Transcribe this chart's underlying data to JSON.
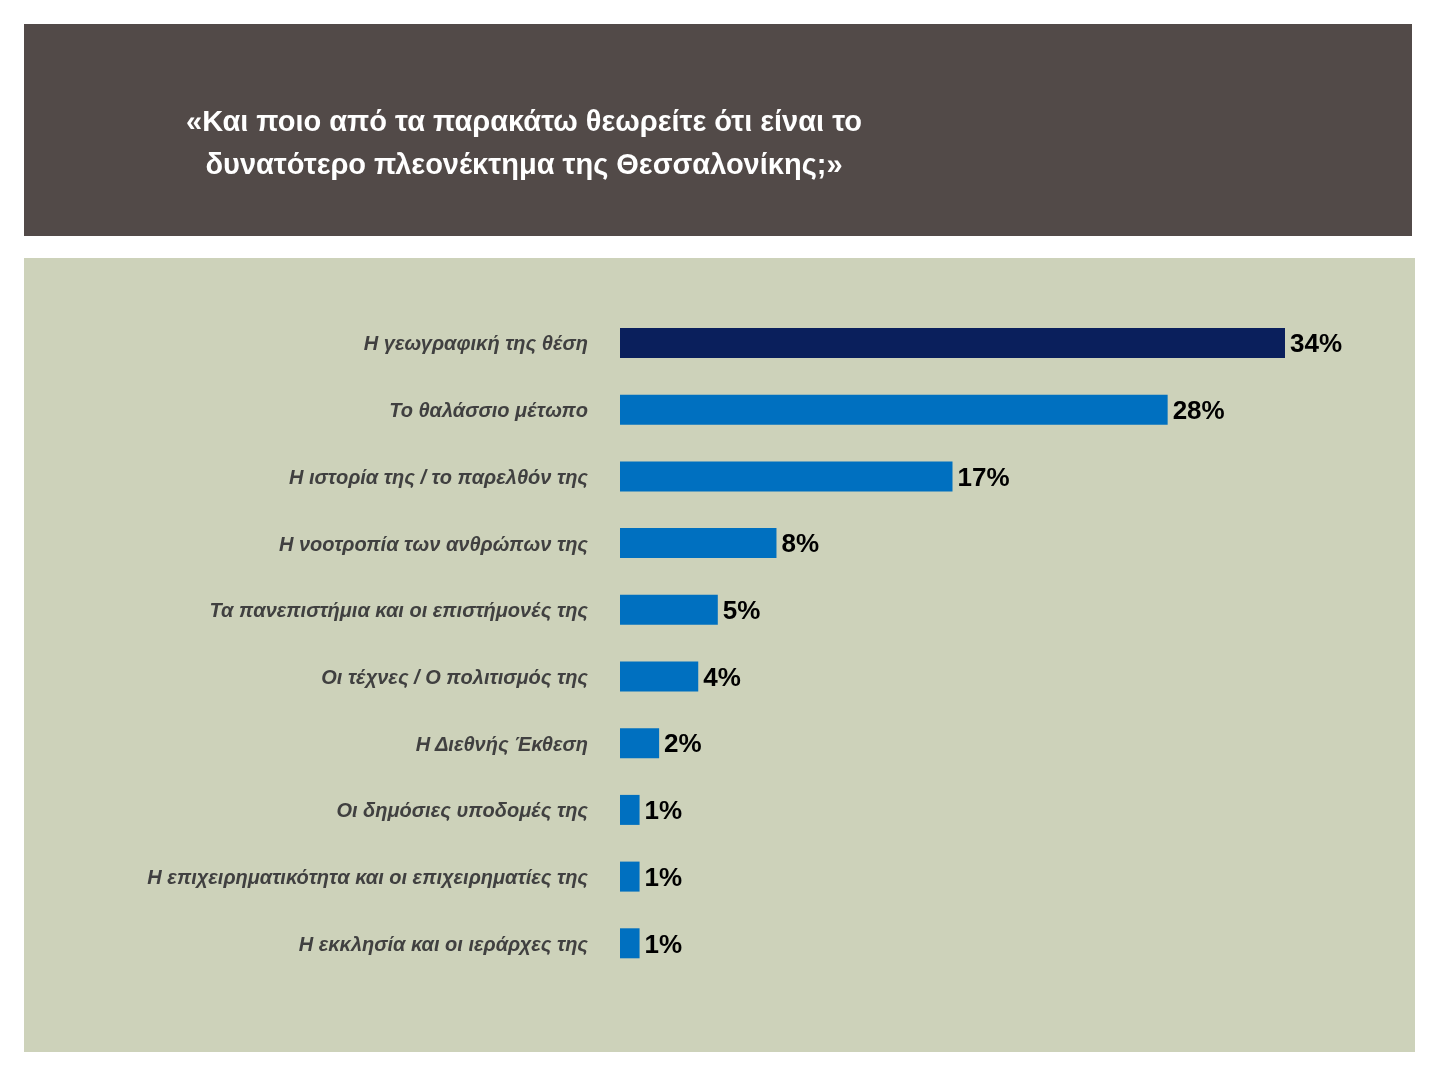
{
  "chart_data": {
    "type": "bar",
    "orientation": "horizontal",
    "title": "«Και ποιο από τα παρακάτω θεωρείτε ότι είναι το δυνατότερο πλεονέκτημα της Θεσσαλονίκης;»",
    "categories": [
      "Η γεωγραφική της θέση",
      "Το θαλάσσιο μέτωπο",
      "Η ιστορία της / το παρελθόν της",
      "Η νοοτροπία των ανθρώπων της",
      "Τα πανεπιστήμια και οι επιστήμονές της",
      "Οι τέχνες / Ο πολιτισμός της",
      "Η Διεθνής Έκθεση",
      "Οι δημόσιες υποδομές της",
      "Η επιχειρηματικότητα και οι επιχειρηματίες της",
      "Η εκκλησία και οι ιεράρχες της"
    ],
    "values": [
      34,
      28,
      17,
      8,
      5,
      4,
      2,
      1,
      1,
      1
    ],
    "value_labels": [
      "34%",
      "28%",
      "17%",
      "8%",
      "5%",
      "4%",
      "2%",
      "1%",
      "1%",
      "1%"
    ],
    "colors": [
      "#0a1f5c",
      "#0070c0",
      "#0070c0",
      "#0070c0",
      "#0070c0",
      "#0070c0",
      "#0070c0",
      "#0070c0",
      "#0070c0",
      "#0070c0"
    ]
  }
}
